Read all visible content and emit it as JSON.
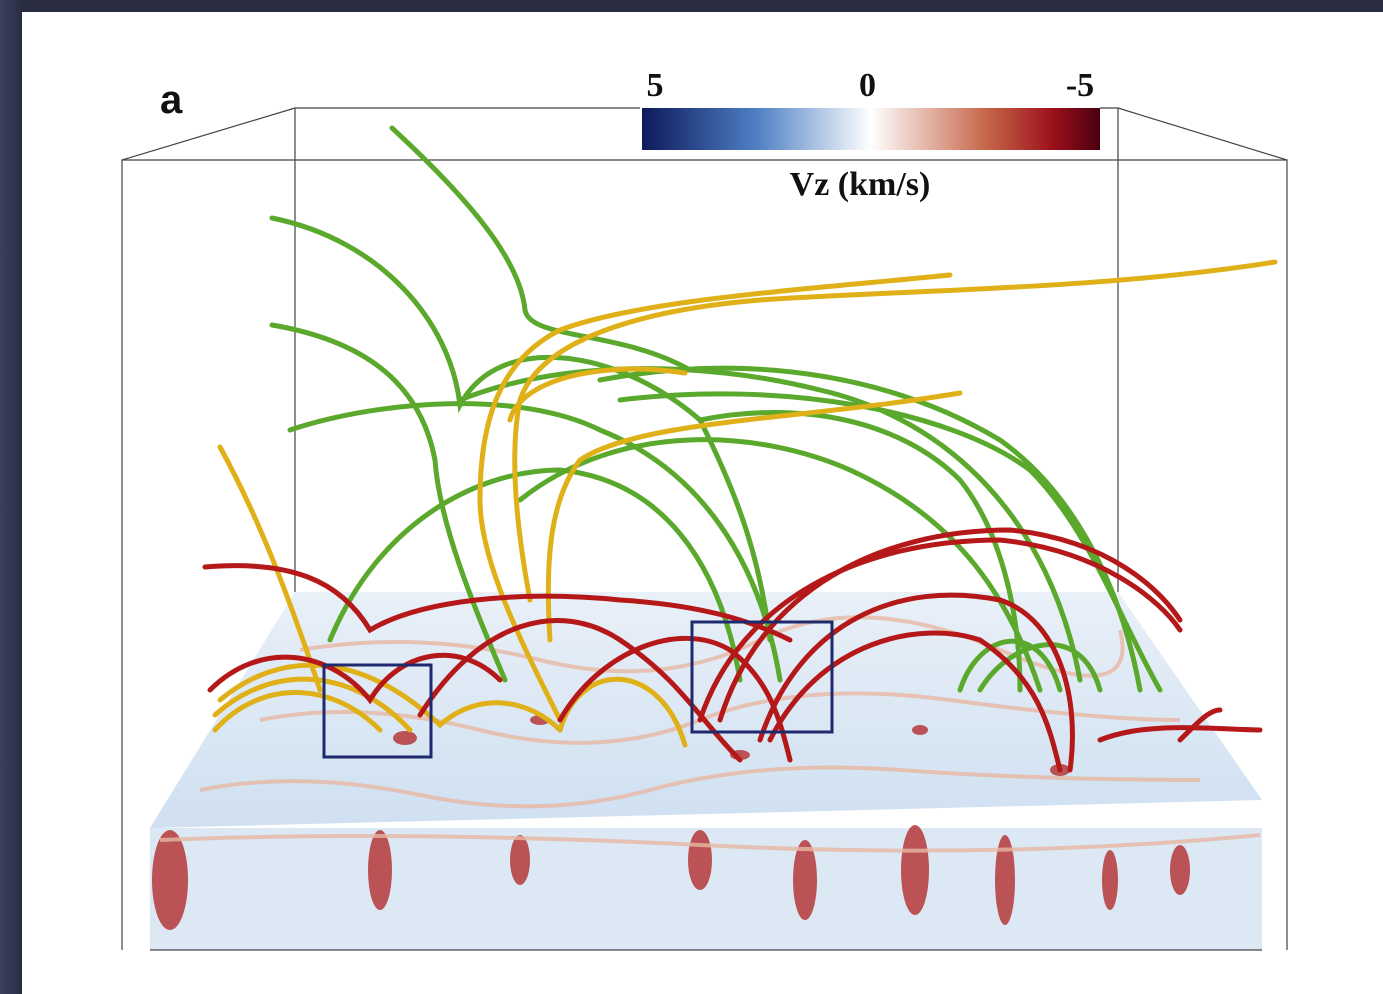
{
  "panel_label": "a",
  "colorbar": {
    "label": "Vz (km/s)",
    "ticks": [
      5,
      0,
      -5
    ]
  }
}
